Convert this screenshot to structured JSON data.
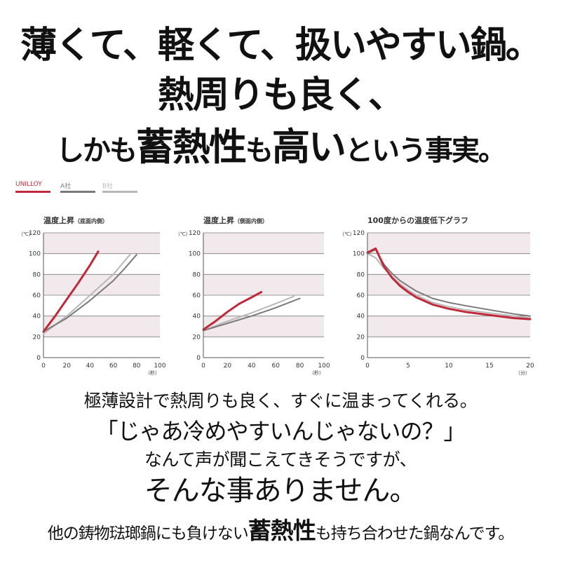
{
  "headline": {
    "line1": "薄くて、軽くて、扱いやすい鍋。",
    "line2": "熱周りも良く、",
    "line3_a": "しかも",
    "line3_b": "蓄熱性",
    "line3_c": "も",
    "line3_d": "高い",
    "line3_e": "という事実。"
  },
  "legend": {
    "items": [
      {
        "label": "UNILLOY",
        "color": "#c0293a"
      },
      {
        "label": "A社",
        "color": "#7a7a7a"
      },
      {
        "label": "B社",
        "color": "#b8b8b8"
      }
    ]
  },
  "colors": {
    "band": "#f2e9ec",
    "grid": "#7d7d7d",
    "unilloy": "#c0293a",
    "a": "#7a7a7a",
    "b": "#b8b8b8"
  },
  "chart_data": [
    {
      "type": "line",
      "title": "温度上昇",
      "subtitle": "（底面内側）",
      "yunit": "（℃）",
      "xunit": "（秒）",
      "xlim": [
        0,
        100
      ],
      "ylim": [
        0,
        120
      ],
      "xticks": [
        "0",
        "20",
        "40",
        "60",
        "80",
        "100"
      ],
      "yticks": [
        "0",
        "20",
        "40",
        "60",
        "80",
        "100",
        "120"
      ],
      "series": [
        {
          "name": "UNILLOY",
          "x": [
            0,
            10,
            20,
            30,
            40,
            47
          ],
          "y": [
            25,
            40,
            56,
            72,
            89,
            102
          ]
        },
        {
          "name": "A社",
          "x": [
            0,
            20,
            40,
            60,
            70,
            80
          ],
          "y": [
            25,
            38,
            55,
            74,
            86,
            99
          ]
        },
        {
          "name": "B社",
          "x": [
            0,
            20,
            40,
            60,
            75
          ],
          "y": [
            23,
            40,
            60,
            80,
            100
          ]
        }
      ]
    },
    {
      "type": "line",
      "title": "温度上昇",
      "subtitle": "（側面内側）",
      "yunit": "（℃）",
      "xunit": "（秒）",
      "xlim": [
        0,
        100
      ],
      "ylim": [
        0,
        120
      ],
      "xticks": [
        "0",
        "20",
        "40",
        "60",
        "80",
        "100"
      ],
      "yticks": [
        "0",
        "20",
        "40",
        "60",
        "80",
        "100",
        "120"
      ],
      "series": [
        {
          "name": "UNILLOY",
          "x": [
            0,
            10,
            20,
            30,
            40,
            48
          ],
          "y": [
            27,
            35,
            44,
            52,
            58,
            63
          ]
        },
        {
          "name": "A社",
          "x": [
            0,
            20,
            40,
            60,
            80
          ],
          "y": [
            26,
            33,
            40,
            48,
            57
          ]
        },
        {
          "name": "B社",
          "x": [
            0,
            20,
            40,
            60,
            75
          ],
          "y": [
            26,
            35,
            43,
            52,
            59
          ]
        }
      ]
    },
    {
      "type": "line",
      "title": "100度からの温度低下グラフ",
      "subtitle": "",
      "yunit": "（℃）",
      "xunit": "（分）",
      "xlim": [
        0,
        20
      ],
      "ylim": [
        0,
        120
      ],
      "xticks": [
        "0",
        "5",
        "10",
        "15",
        "20"
      ],
      "yticks": [
        "0",
        "20",
        "40",
        "60",
        "80",
        "100",
        "120"
      ],
      "series": [
        {
          "name": "UNILLOY",
          "x": [
            0,
            1,
            2,
            3,
            4,
            5,
            6,
            8,
            10,
            12,
            15,
            18,
            20
          ],
          "y": [
            101,
            105,
            88,
            77,
            69,
            63,
            58,
            51,
            47,
            44,
            41,
            38,
            37
          ]
        },
        {
          "name": "A社",
          "x": [
            0,
            1,
            2,
            3,
            4,
            5,
            6,
            8,
            10,
            12,
            15,
            18,
            20
          ],
          "y": [
            100,
            104,
            90,
            81,
            74,
            69,
            64,
            57,
            53,
            50,
            46,
            42,
            40
          ]
        },
        {
          "name": "B社",
          "x": [
            0,
            1,
            2,
            3,
            4,
            5,
            6,
            8,
            10,
            12,
            15,
            18,
            20
          ],
          "y": [
            100,
            96,
            86,
            78,
            71,
            65,
            60,
            53,
            49,
            46,
            43,
            40,
            38
          ]
        }
      ]
    }
  ],
  "body": {
    "line1": "極薄設計で熱周りも良く、すぐに温まってくれる。",
    "line2": "「じゃあ冷めやすいんじゃないの？」",
    "line3": "なんて声が聞こえてきそうですが、",
    "line4": "そんな事ありません。",
    "line5_a": "他の鋳物琺瑯鍋にも負けない",
    "line5_b": "蓄熱性",
    "line5_c": "も持ち合わせた鍋なんです。"
  }
}
